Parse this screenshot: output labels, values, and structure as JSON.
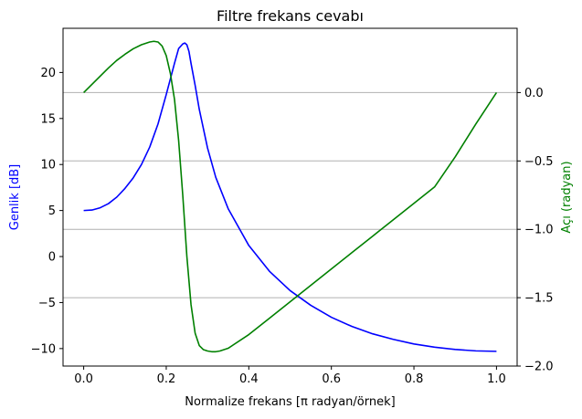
{
  "chart_data": {
    "type": "line",
    "title": "Filtre frekans cevabı",
    "xlabel": "Normalize frekans [π radyan/örnek]",
    "ylabel_left": "Genlik [dB]",
    "ylabel_right": "Açı (radyan)",
    "xlim": [
      -0.05,
      1.05
    ],
    "ylim_left": [
      -11.9,
      24.8
    ],
    "ylim_right": [
      -2.0,
      0.47
    ],
    "x_ticks": [
      0.0,
      0.2,
      0.4,
      0.6,
      0.8,
      1.0
    ],
    "x_tick_labels": [
      "0.0",
      "0.2",
      "0.4",
      "0.6",
      "0.8",
      "1.0"
    ],
    "y_left_ticks": [
      -10,
      -5,
      0,
      5,
      10,
      15,
      20
    ],
    "y_left_tick_labels": [
      "−10",
      "−5",
      "0",
      "5",
      "10",
      "15",
      "20"
    ],
    "y_right_ticks": [
      -2.0,
      -1.5,
      -1.0,
      -0.5,
      0.0
    ],
    "y_right_tick_labels": [
      "−2.0",
      "−1.5",
      "−1.0",
      "−0.5",
      "0.0"
    ],
    "grid": "right-axis horizontal",
    "colors": {
      "left_axis": "#0000ff",
      "right_axis": "#008000",
      "grid": "#b0b0b0"
    },
    "series": [
      {
        "axis": "left",
        "color": "#0000ff",
        "x": [
          0.0,
          0.02,
          0.04,
          0.06,
          0.08,
          0.1,
          0.12,
          0.14,
          0.16,
          0.18,
          0.2,
          0.22,
          0.23,
          0.24,
          0.245,
          0.25,
          0.255,
          0.26,
          0.27,
          0.28,
          0.3,
          0.32,
          0.35,
          0.4,
          0.45,
          0.5,
          0.55,
          0.6,
          0.65,
          0.7,
          0.75,
          0.8,
          0.85,
          0.9,
          0.95,
          1.0
        ],
        "y": [
          5.0,
          5.05,
          5.3,
          5.75,
          6.45,
          7.4,
          8.55,
          10.0,
          11.9,
          14.4,
          17.6,
          21.0,
          22.6,
          23.1,
          23.2,
          23.0,
          22.3,
          21.0,
          18.6,
          16.0,
          11.8,
          8.6,
          5.2,
          1.2,
          -1.6,
          -3.7,
          -5.3,
          -6.6,
          -7.6,
          -8.4,
          -9.0,
          -9.5,
          -9.85,
          -10.1,
          -10.25,
          -10.3
        ]
      },
      {
        "axis": "right",
        "color": "#008000",
        "x": [
          0.0,
          0.02,
          0.04,
          0.06,
          0.08,
          0.1,
          0.12,
          0.14,
          0.16,
          0.17,
          0.18,
          0.19,
          0.2,
          0.21,
          0.22,
          0.23,
          0.24,
          0.25,
          0.26,
          0.27,
          0.28,
          0.29,
          0.3,
          0.31,
          0.32,
          0.33,
          0.35,
          0.4,
          0.45,
          0.5,
          0.55,
          0.6,
          0.65,
          0.7,
          0.75,
          0.8,
          0.85,
          0.9,
          0.95,
          1.0
        ],
        "y": [
          0.0,
          0.06,
          0.12,
          0.18,
          0.235,
          0.28,
          0.32,
          0.35,
          0.37,
          0.375,
          0.37,
          0.34,
          0.27,
          0.14,
          -0.05,
          -0.35,
          -0.75,
          -1.2,
          -1.55,
          -1.76,
          -1.85,
          -1.88,
          -1.89,
          -1.895,
          -1.895,
          -1.89,
          -1.87,
          -1.77,
          -1.65,
          -1.53,
          -1.41,
          -1.29,
          -1.17,
          -1.05,
          -0.93,
          -0.81,
          -0.69,
          -0.47,
          -0.23,
          0.0
        ]
      }
    ]
  }
}
